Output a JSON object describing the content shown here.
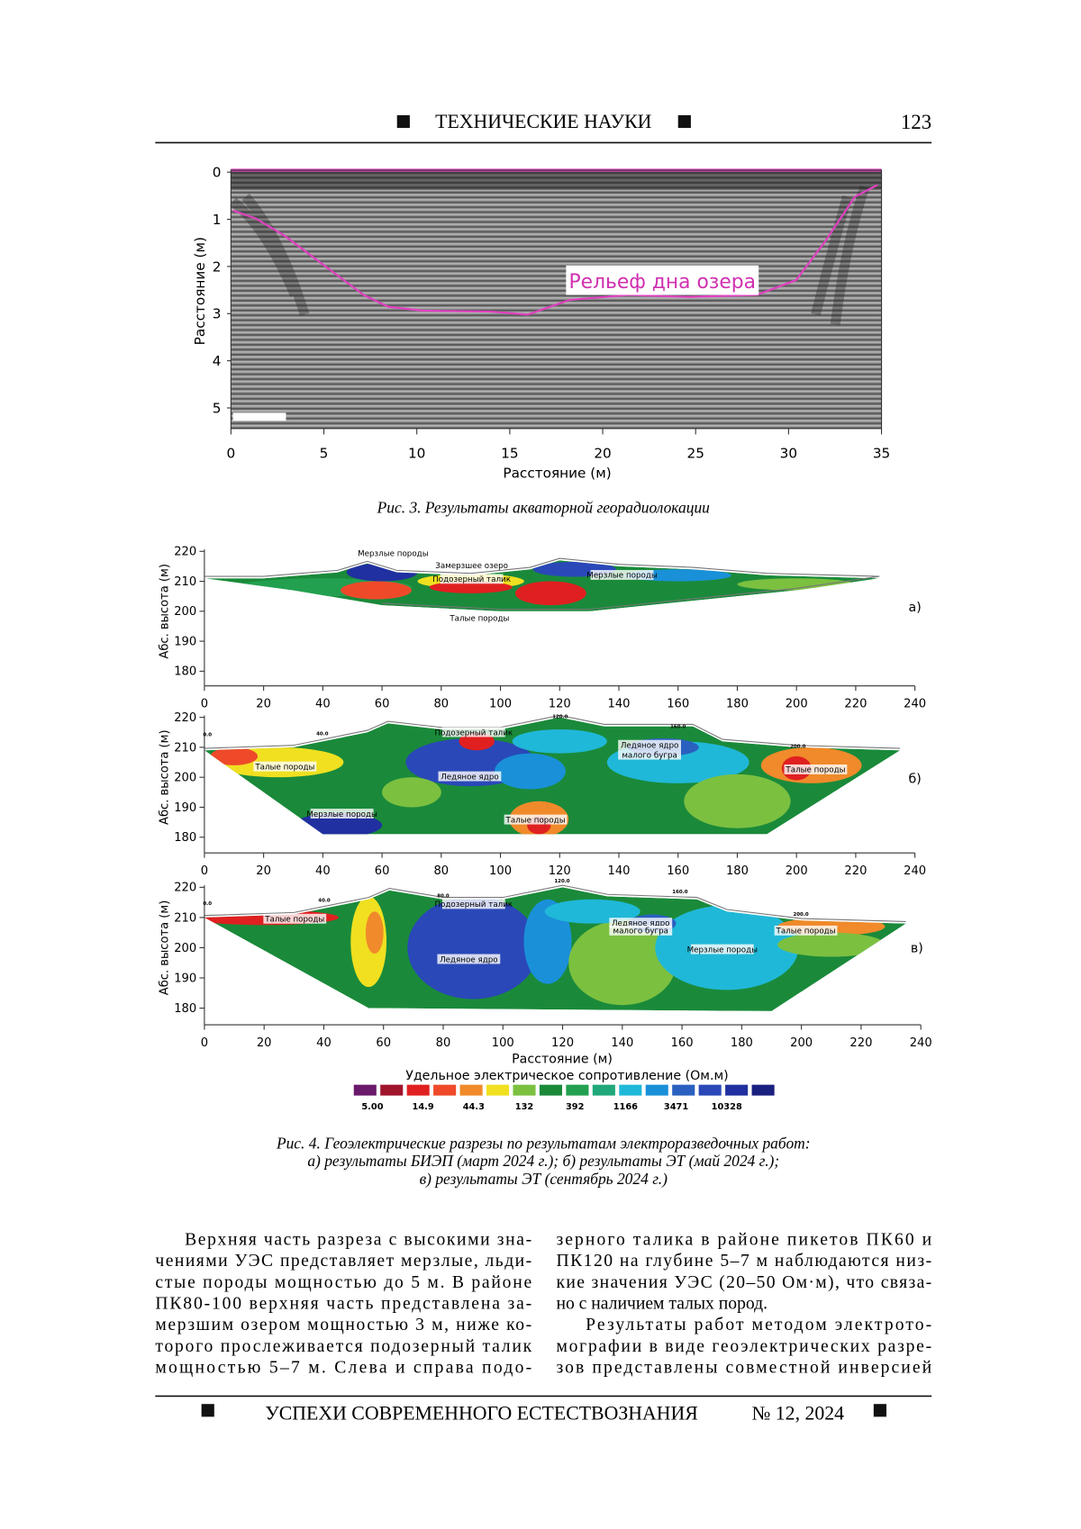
{
  "header": {
    "section": "ТЕХНИЧЕСКИЕ НАУКИ",
    "page_number": "123"
  },
  "figure3": {
    "y_label": "Расстояние (м)",
    "x_label": "Расстояние (м)",
    "yticks": [
      0,
      1,
      2,
      3,
      4,
      5
    ],
    "xticks": [
      0,
      5,
      10,
      15,
      20,
      25,
      30,
      35
    ],
    "annotation": "Рельеф дна озера",
    "caption": "Рис. 3. Результаты акваторной георадиолокации"
  },
  "figure4": {
    "y_label": "Абс. высота (м)",
    "x_label": "Расстояние (м)",
    "yticks": [
      220,
      210,
      200,
      190,
      180
    ],
    "xticks": [
      0,
      20,
      40,
      60,
      80,
      100,
      120,
      140,
      160,
      180,
      200,
      220,
      240
    ],
    "panels": [
      {
        "label": "а)",
        "annotations": [
          "Мерзлые породы",
          "Замерзшее озеро",
          "Подозерный талик",
          "Мерзлые породы",
          "Талые породы"
        ],
        "markers": []
      },
      {
        "label": "б)",
        "annotations": [
          "Подозерный талик",
          "Ледяное ядро",
          "малого бугра",
          "Талые породы",
          "Ледяное ядро",
          "Талые породы",
          "Мерзлые породы",
          "Талые породы"
        ],
        "markers": [
          "0.0",
          "40.0",
          "120.0",
          "160.0",
          "200.0"
        ]
      },
      {
        "label": "в)",
        "annotations": [
          "Талые породы",
          "Подозерный талик",
          "Ледяное ядро",
          "Ледяное ядро",
          "малого бугра",
          "Мерзлые породы",
          "Талые породы"
        ],
        "markers": [
          "0.0",
          "40.0",
          "80.0",
          "120.0",
          "160.0",
          "200.0"
        ]
      }
    ],
    "legend": {
      "title": "Удельное электрическое сопротивление (Ом.м)",
      "colors": [
        "#6a1a6a",
        "#a0142c",
        "#e02020",
        "#ee4a2a",
        "#f08a2a",
        "#f0e020",
        "#7cc040",
        "#1a8a3a",
        "#22a050",
        "#20a87a",
        "#20b8d8",
        "#1a90d8",
        "#2a60c0",
        "#2a48b8",
        "#2030a0",
        "#1a2080"
      ],
      "labels": [
        "5.00",
        "14.9",
        "44.3",
        "132",
        "392",
        "1166",
        "3471",
        "10328"
      ]
    },
    "caption": [
      "Рис. 4. Геоэлектрические разрезы по результатам электроразведочных работ:",
      "а) результаты БИЭП (март 2024 г.); б) результаты ЭТ (май 2024 г.);",
      "в) результаты ЭТ (сентябрь 2024 г.)"
    ]
  },
  "body": {
    "left": [
      "Верхняя часть разреза с высокими зна-",
      "чениями УЭС представляет мерзлые, льди-",
      "стые породы мощностью до 5 м. В районе",
      "ПК80-100 верхняя часть представлена за-",
      "мерзшим озером мощностью 3 м, ниже ко-",
      "торого прослеживается подозерный талик",
      "мощностью 5–7 м. Слева и справа подо-"
    ],
    "right": [
      "зерного талика в районе пикетов ПК60 и",
      "ПК120 на глубине 5–7 м наблюдаются низ-",
      "кие значения УЭС (20–50 Ом·м), что связа-",
      "но с наличием талых пород.",
      "Результаты работ методом электрото-",
      "мографии в виде геоэлектрических разре-",
      "зов представлены совместной инверсией"
    ]
  },
  "footer": {
    "journal": "УСПЕХИ СОВРЕМЕННОГО ЕСТЕСТВОЗНАНИЯ",
    "issue": "№ 12, 2024"
  }
}
